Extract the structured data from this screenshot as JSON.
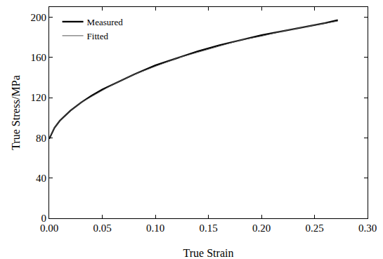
{
  "chart_data": {
    "type": "line",
    "x_label": "True Strain",
    "y_label": "True Stress/MPa",
    "x": [
      0,
      0.005,
      0.01,
      0.02,
      0.03,
      0.04,
      0.05,
      0.06,
      0.08,
      0.1,
      0.12,
      0.14,
      0.16,
      0.18,
      0.2,
      0.22,
      0.24,
      0.26,
      0.272
    ],
    "series": [
      {
        "name": "Measured",
        "color": "#000000",
        "line_style": "solid",
        "values": [
          79,
          90,
          97,
          107,
          115,
          122,
          128,
          133,
          143,
          152,
          159,
          166,
          172,
          177,
          182,
          186,
          190,
          194,
          197
        ]
      },
      {
        "name": "Fitted",
        "color": "#555555",
        "line_style": "solid",
        "values": [
          80,
          90,
          97,
          107,
          115,
          121,
          127,
          133,
          143,
          151,
          159,
          165,
          171,
          177,
          181,
          186,
          190,
          194,
          196
        ]
      }
    ],
    "xlim": [
      0,
      0.3
    ],
    "ylim": [
      0,
      210
    ],
    "xticks": [
      {
        "value": 0,
        "label": "0.00"
      },
      0.05,
      {
        "value": 0.1,
        "label": "0.10"
      },
      0.15,
      {
        "value": 0.2,
        "label": "0.20"
      },
      0.25,
      {
        "value": 0.3,
        "label": "0.30"
      }
    ],
    "yticks": [
      0,
      40,
      80,
      120,
      160,
      200
    ],
    "legend": "upper left",
    "grid": false
  }
}
